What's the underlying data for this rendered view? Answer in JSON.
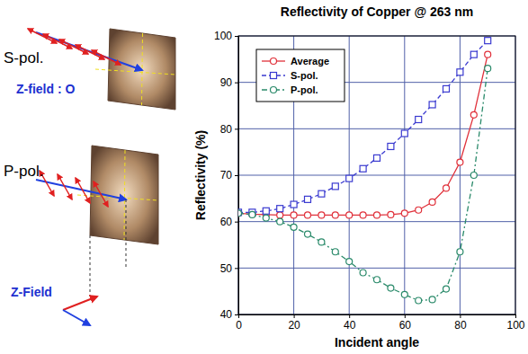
{
  "chart_data": {
    "type": "line",
    "title": "Reflectivity of Copper @ 263 nm",
    "x_label": "Incident angle",
    "y_label": "Reflectivity (%)",
    "x": [
      0,
      5,
      10,
      15,
      20,
      25,
      30,
      35,
      40,
      45,
      50,
      55,
      60,
      65,
      70,
      75,
      80,
      85,
      90
    ],
    "series": [
      {
        "name": "Average",
        "color": "#e0303a",
        "marker": "circle",
        "line_style": "solid",
        "values": [
          61.8,
          61.6,
          61.5,
          61.4,
          61.4,
          61.4,
          61.4,
          61.4,
          61.4,
          61.4,
          61.4,
          61.5,
          61.8,
          62.5,
          64.2,
          67.2,
          72.8,
          83,
          96
        ]
      },
      {
        "name": "S-pol.",
        "color": "#3a3ad0",
        "marker": "square",
        "line_style": "dashed",
        "values": [
          62,
          62,
          62.3,
          62.8,
          63.7,
          64.8,
          66,
          67.6,
          69.3,
          71.4,
          73.7,
          76.2,
          79,
          82,
          85.2,
          88.6,
          92.2,
          96,
          99
        ]
      },
      {
        "name": "P-pol.",
        "color": "#2a8a6a",
        "marker": "circle",
        "line_style": "dashdot",
        "values": [
          61.8,
          61.5,
          60.8,
          60,
          58.8,
          57.3,
          55.6,
          53.5,
          51.4,
          49,
          47.5,
          45.7,
          44.3,
          43,
          43.2,
          45.5,
          53.5,
          70,
          93
        ]
      }
    ],
    "xlim": [
      0,
      100
    ],
    "xticks": [
      0,
      20,
      40,
      60,
      80,
      100
    ],
    "ylim": [
      40,
      100
    ],
    "yticks": [
      40,
      50,
      60,
      70,
      80,
      90,
      100
    ],
    "grid": true,
    "legend": "upper left"
  },
  "diagram": {
    "s_label": "S-pol.",
    "s_field": "Z-field : O",
    "p_label": "P-pol.",
    "p_field": "Z-Field"
  }
}
